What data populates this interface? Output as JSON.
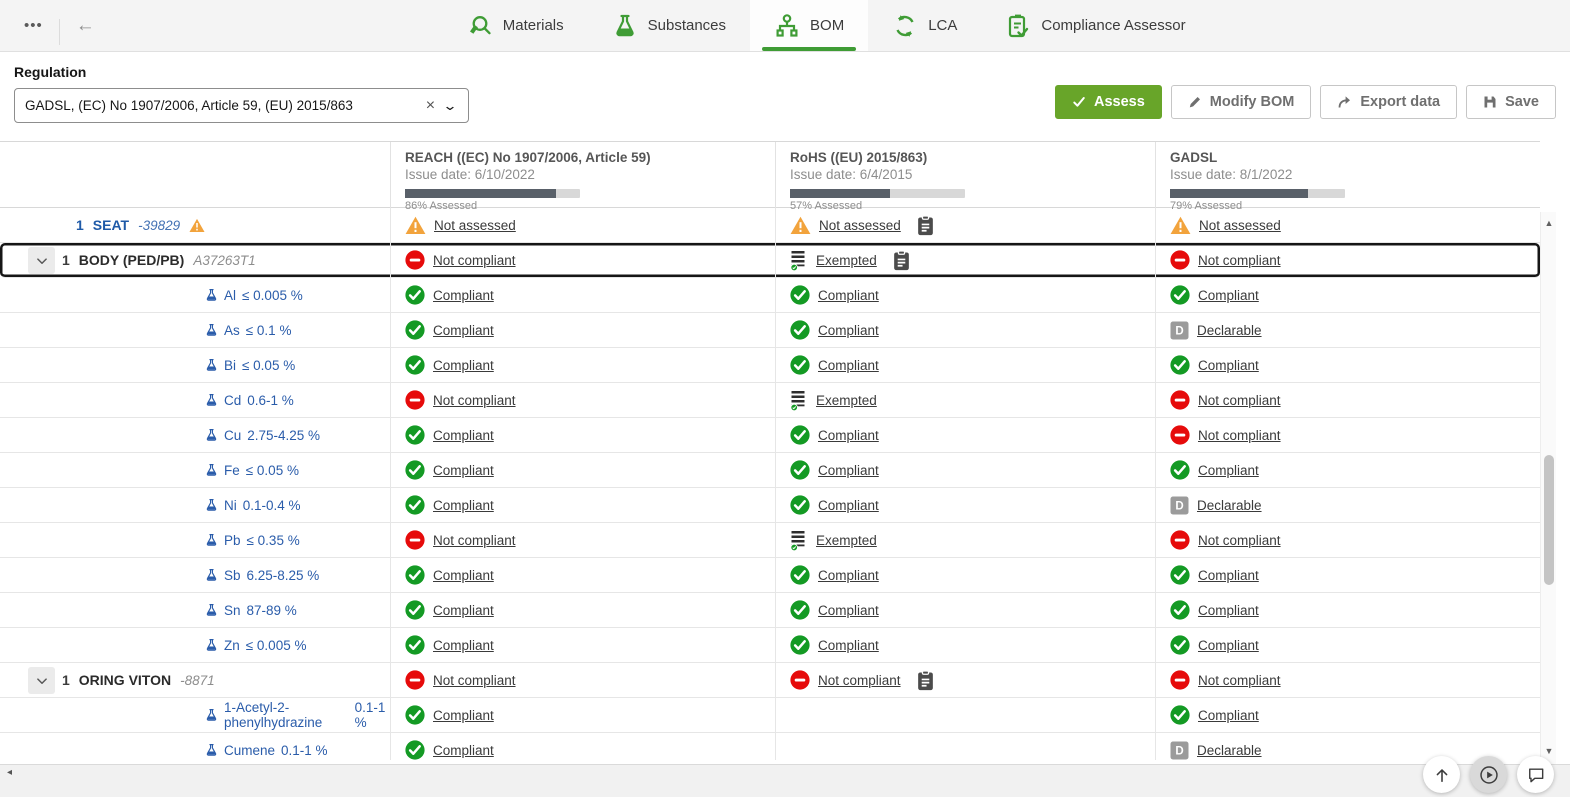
{
  "topbar": {
    "overflow_icon": "•••",
    "back_icon": "←",
    "tabs": [
      {
        "label": "Materials",
        "icon": "materials-icon",
        "active": false
      },
      {
        "label": "Substances",
        "icon": "flask-icon",
        "active": false
      },
      {
        "label": "BOM",
        "icon": "hierarchy-icon",
        "active": true
      },
      {
        "label": "LCA",
        "icon": "lifecycle-icon",
        "active": false
      },
      {
        "label": "Compliance Assessor",
        "icon": "clipboard-check-icon",
        "active": false
      }
    ]
  },
  "regulation": {
    "label": "Regulation",
    "value": "GADSL, (EC) No 1907/2006, Article 59, (EU) 2015/863",
    "clear_icon": "×",
    "chevron_icon": "⌄"
  },
  "toolbar": {
    "assess": "Assess",
    "modify_bom": "Modify BOM",
    "export_data": "Export data",
    "save": "Save"
  },
  "table": {
    "columns": [
      {
        "title": "REACH ((EC) No 1907/2006, Article 59)",
        "issue_date": "Issue date: 6/10/2022",
        "assessed_pct": 86,
        "assessed_label": "86% Assessed"
      },
      {
        "title": "RoHS ((EU) 2015/863)",
        "issue_date": "Issue date: 6/4/2015",
        "assessed_pct": 57,
        "assessed_label": "57% Assessed"
      },
      {
        "title": "GADSL",
        "issue_date": "Issue date: 8/1/2022",
        "assessed_pct": 79,
        "assessed_label": "79% Assessed"
      }
    ],
    "rows": [
      {
        "kind": "part",
        "style": "seat",
        "qty": "1",
        "name": "SEAT",
        "part_id": "-39829",
        "warning": true,
        "expander": false,
        "selected": false,
        "cells": [
          {
            "label": "Not assessed",
            "type": "not-assessed",
            "clipboard": false
          },
          {
            "label": "Not assessed",
            "type": "not-assessed",
            "clipboard": true
          },
          {
            "label": "Not assessed",
            "type": "not-assessed",
            "clipboard": false
          }
        ]
      },
      {
        "kind": "part",
        "style": "child",
        "qty": "1",
        "name": "BODY (PED/PB)",
        "part_id": "A37263T1",
        "warning": false,
        "expander": true,
        "selected": true,
        "cells": [
          {
            "label": "Not compliant",
            "type": "not-compliant",
            "clipboard": false
          },
          {
            "label": "Exempted",
            "type": "exempted",
            "clipboard": true
          },
          {
            "label": "Not compliant",
            "type": "not-compliant",
            "clipboard": false
          }
        ]
      },
      {
        "kind": "substance",
        "name": "Al",
        "amount": "≤ 0.005 %",
        "cells": [
          {
            "label": "Compliant",
            "type": "compliant",
            "clipboard": false
          },
          {
            "label": "Compliant",
            "type": "compliant",
            "clipboard": false
          },
          {
            "label": "Compliant",
            "type": "compliant",
            "clipboard": false
          }
        ]
      },
      {
        "kind": "substance",
        "name": "As",
        "amount": "≤ 0.1 %",
        "cells": [
          {
            "label": "Compliant",
            "type": "compliant",
            "clipboard": false
          },
          {
            "label": "Compliant",
            "type": "compliant",
            "clipboard": false
          },
          {
            "label": "Declarable",
            "type": "declarable",
            "clipboard": false
          }
        ]
      },
      {
        "kind": "substance",
        "name": "Bi",
        "amount": "≤ 0.05 %",
        "cells": [
          {
            "label": "Compliant",
            "type": "compliant",
            "clipboard": false
          },
          {
            "label": "Compliant",
            "type": "compliant",
            "clipboard": false
          },
          {
            "label": "Compliant",
            "type": "compliant",
            "clipboard": false
          }
        ]
      },
      {
        "kind": "substance",
        "name": "Cd",
        "amount": "0.6-1 %",
        "cells": [
          {
            "label": "Not compliant",
            "type": "not-compliant",
            "clipboard": false
          },
          {
            "label": "Exempted",
            "type": "exempted",
            "clipboard": false
          },
          {
            "label": "Not compliant",
            "type": "not-compliant",
            "clipboard": false
          }
        ]
      },
      {
        "kind": "substance",
        "name": "Cu",
        "amount": "2.75-4.25 %",
        "cells": [
          {
            "label": "Compliant",
            "type": "compliant",
            "clipboard": false
          },
          {
            "label": "Compliant",
            "type": "compliant",
            "clipboard": false
          },
          {
            "label": "Not compliant",
            "type": "not-compliant",
            "clipboard": false
          }
        ]
      },
      {
        "kind": "substance",
        "name": "Fe",
        "amount": "≤ 0.05 %",
        "cells": [
          {
            "label": "Compliant",
            "type": "compliant",
            "clipboard": false
          },
          {
            "label": "Compliant",
            "type": "compliant",
            "clipboard": false
          },
          {
            "label": "Compliant",
            "type": "compliant",
            "clipboard": false
          }
        ]
      },
      {
        "kind": "substance",
        "name": "Ni",
        "amount": "0.1-0.4 %",
        "cells": [
          {
            "label": "Compliant",
            "type": "compliant",
            "clipboard": false
          },
          {
            "label": "Compliant",
            "type": "compliant",
            "clipboard": false
          },
          {
            "label": "Declarable",
            "type": "declarable",
            "clipboard": false
          }
        ]
      },
      {
        "kind": "substance",
        "name": "Pb",
        "amount": "≤ 0.35 %",
        "cells": [
          {
            "label": "Not compliant",
            "type": "not-compliant",
            "clipboard": false
          },
          {
            "label": "Exempted",
            "type": "exempted",
            "clipboard": false
          },
          {
            "label": "Not compliant",
            "type": "not-compliant",
            "clipboard": false
          }
        ]
      },
      {
        "kind": "substance",
        "name": "Sb",
        "amount": "6.25-8.25 %",
        "cells": [
          {
            "label": "Compliant",
            "type": "compliant",
            "clipboard": false
          },
          {
            "label": "Compliant",
            "type": "compliant",
            "clipboard": false
          },
          {
            "label": "Compliant",
            "type": "compliant",
            "clipboard": false
          }
        ]
      },
      {
        "kind": "substance",
        "name": "Sn",
        "amount": "87-89 %",
        "cells": [
          {
            "label": "Compliant",
            "type": "compliant",
            "clipboard": false
          },
          {
            "label": "Compliant",
            "type": "compliant",
            "clipboard": false
          },
          {
            "label": "Compliant",
            "type": "compliant",
            "clipboard": false
          }
        ]
      },
      {
        "kind": "substance",
        "name": "Zn",
        "amount": "≤ 0.005 %",
        "cells": [
          {
            "label": "Compliant",
            "type": "compliant",
            "clipboard": false
          },
          {
            "label": "Compliant",
            "type": "compliant",
            "clipboard": false
          },
          {
            "label": "Compliant",
            "type": "compliant",
            "clipboard": false
          }
        ]
      },
      {
        "kind": "part",
        "style": "child",
        "qty": "1",
        "name": "ORING VITON",
        "part_id": "-8871",
        "warning": false,
        "expander": true,
        "selected": false,
        "cells": [
          {
            "label": "Not compliant",
            "type": "not-compliant",
            "clipboard": false
          },
          {
            "label": "Not compliant",
            "type": "not-compliant",
            "clipboard": true
          },
          {
            "label": "Not compliant",
            "type": "not-compliant",
            "clipboard": false
          }
        ]
      },
      {
        "kind": "substance",
        "name": "1-Acetyl-2-phenylhydrazine",
        "amount": "0.1-1 %",
        "cells": [
          {
            "label": "Compliant",
            "type": "compliant",
            "clipboard": false
          },
          null,
          {
            "label": "Compliant",
            "type": "compliant",
            "clipboard": false
          }
        ]
      },
      {
        "kind": "substance",
        "name": "Cumene",
        "amount": "0.1-1 %",
        "cells": [
          {
            "label": "Compliant",
            "type": "compliant",
            "clipboard": false
          },
          null,
          {
            "label": "Declarable",
            "type": "declarable",
            "clipboard": false
          }
        ]
      }
    ]
  },
  "scrollbars": {
    "up_icon": "▲",
    "down_icon": "▼",
    "left_icon": "◂"
  },
  "colors": {
    "accent_green": "#3f9c35",
    "assess_button_green": "#68a529",
    "compliant_green": "#149a24",
    "not_compliant_red": "#e60b0b",
    "warning_orange": "#f2a33c",
    "declarable_gray": "#9b9b9b",
    "substance_blue": "#2a5caa"
  }
}
